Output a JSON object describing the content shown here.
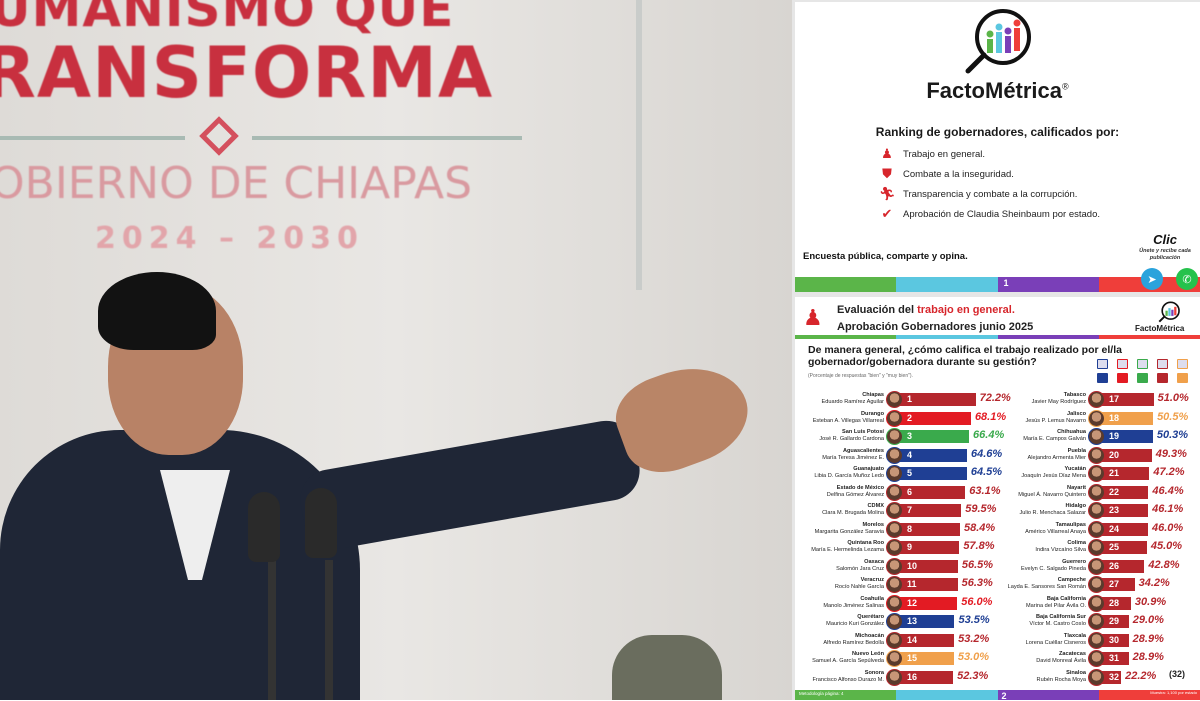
{
  "photo": {
    "banner_line1": "UMANISMO QUE",
    "banner_line2": "RANSFORMA",
    "banner_line3": "OBIERNO DE CHIAPAS",
    "banner_years": "2024 – 2030"
  },
  "slide1": {
    "brand": "FactoMétrica",
    "registered": "®",
    "ranking_title": "Ranking de gobernadores, calificados por:",
    "criteria": [
      {
        "icon": "worker-icon",
        "label": "Trabajo en general."
      },
      {
        "icon": "shield-icon",
        "label": "Combate a la inseguridad."
      },
      {
        "icon": "runner-icon",
        "label": "Transparencia y combate a la corrupción."
      },
      {
        "icon": "checkmark-icon",
        "label": "Aprobación de Claudia Sheinbaum por estado."
      }
    ],
    "footer_text": "Encuesta pública, comparte y opina.",
    "clic": "Clic",
    "join_text": "Únete y recibe cada publicación",
    "page_number": "1"
  },
  "slide2": {
    "title_prefix": "Evaluación del ",
    "title_highlight": "trabajo en general.",
    "subtitle": "Aprobación Gobernadores junio 2025",
    "brand": "FactoMétrica",
    "question": "De manera general, ¿cómo califica el trabajo realizado por el/la gobernador/gobernadora durante su gestión?",
    "note": "(Porcentaje de respuestas \"bien\" y \"muy bien\").",
    "total": "(32)",
    "methodology": "Metodología página: 4",
    "page_number": "2",
    "footer_right": "Muestra: 1,100 por estado"
  },
  "colors": {
    "PAN": "#1f3f94",
    "PRI": "#e31b23",
    "PVEM": "#3aaa4c",
    "MORENA": "#b5272d",
    "MC": "#f0a04b"
  },
  "chart_data": {
    "type": "bar",
    "title": "Aprobación Gobernadores junio 2025",
    "unit": "%",
    "xlim": [
      0,
      100
    ],
    "legend": [
      "PAN",
      "PRI",
      "PVEM",
      "MORENA",
      "MC"
    ],
    "items": [
      {
        "rank": "1",
        "state": "Chiapas",
        "governor": "Eduardo Ramírez Aguilar",
        "value": 72.2,
        "label": "72.2%",
        "party": "MORENA"
      },
      {
        "rank": "2",
        "state": "Durango",
        "governor": "Esteban A. Villegas Villarreal",
        "value": 68.1,
        "label": "68.1%",
        "party": "PRI"
      },
      {
        "rank": "3",
        "state": "San Luis Potosí",
        "governor": "José R. Gallardo Cardona",
        "value": 66.4,
        "label": "66.4%",
        "party": "PVEM"
      },
      {
        "rank": "4",
        "state": "Aguascalientes",
        "governor": "María Teresa Jiménez E.",
        "value": 64.6,
        "label": "64.6%",
        "party": "PAN"
      },
      {
        "rank": "5",
        "state": "Guanajuato",
        "governor": "Libia D. García Muñoz Ledo",
        "value": 64.5,
        "label": "64.5%",
        "party": "PAN"
      },
      {
        "rank": "6",
        "state": "Estado de México",
        "governor": "Delfina Gómez Álvarez",
        "value": 63.1,
        "label": "63.1%",
        "party": "MORENA"
      },
      {
        "rank": "7",
        "state": "CDMX",
        "governor": "Clara M. Brugada Molina",
        "value": 59.5,
        "label": "59.5%",
        "party": "MORENA"
      },
      {
        "rank": "8",
        "state": "Morelos",
        "governor": "Margarita González Saravia",
        "value": 58.4,
        "label": "58.4%",
        "party": "MORENA"
      },
      {
        "rank": "9",
        "state": "Quintana Roo",
        "governor": "María E. Hermelinda Lezama",
        "value": 57.8,
        "label": "57.8%",
        "party": "MORENA"
      },
      {
        "rank": "10",
        "state": "Oaxaca",
        "governor": "Salomón Jara Cruz",
        "value": 56.5,
        "label": "56.5%",
        "party": "MORENA"
      },
      {
        "rank": "11",
        "state": "Veracruz",
        "governor": "Rocío Nahle García",
        "value": 56.3,
        "label": "56.3%",
        "party": "MORENA"
      },
      {
        "rank": "12",
        "state": "Coahuila",
        "governor": "Manolo Jiménez Salinas",
        "value": 56.0,
        "label": "56.0%",
        "party": "PRI"
      },
      {
        "rank": "13",
        "state": "Querétaro",
        "governor": "Mauricio Kuri González",
        "value": 53.5,
        "label": "53.5%",
        "party": "PAN"
      },
      {
        "rank": "14",
        "state": "Michoacán",
        "governor": "Alfredo Ramírez Bedolla",
        "value": 53.2,
        "label": "53.2%",
        "party": "MORENA"
      },
      {
        "rank": "15",
        "state": "Nuevo León",
        "governor": "Samuel A. García Sepúlveda",
        "value": 53.0,
        "label": "53.0%",
        "party": "MC"
      },
      {
        "rank": "16",
        "state": "Sonora",
        "governor": "Francisco Alfonso Durazo M.",
        "value": 52.3,
        "label": "52.3%",
        "party": "MORENA"
      },
      {
        "rank": "17",
        "state": "Tabasco",
        "governor": "Javier May Rodríguez",
        "value": 51.0,
        "label": "51.0%",
        "party": "MORENA"
      },
      {
        "rank": "18",
        "state": "Jalisco",
        "governor": "Jesús P. Lemus Navarro",
        "value": 50.5,
        "label": "50.5%",
        "party": "MC"
      },
      {
        "rank": "19",
        "state": "Chihuahua",
        "governor": "María E. Campos Galván",
        "value": 50.3,
        "label": "50.3%",
        "party": "PAN"
      },
      {
        "rank": "20",
        "state": "Puebla",
        "governor": "Alejandro Armenta Mier",
        "value": 49.3,
        "label": "49.3%",
        "party": "MORENA"
      },
      {
        "rank": "21",
        "state": "Yucatán",
        "governor": "Joaquín Jesús Díaz Mena",
        "value": 47.2,
        "label": "47.2%",
        "party": "MORENA"
      },
      {
        "rank": "22",
        "state": "Nayarit",
        "governor": "Miguel Á. Navarro Quintero",
        "value": 46.4,
        "label": "46.4%",
        "party": "MORENA"
      },
      {
        "rank": "23",
        "state": "Hidalgo",
        "governor": "Julio R. Menchaca Salazar",
        "value": 46.1,
        "label": "46.1%",
        "party": "MORENA"
      },
      {
        "rank": "24",
        "state": "Tamaulipas",
        "governor": "Américo Villarreal Anaya",
        "value": 46.0,
        "label": "46.0%",
        "party": "MORENA"
      },
      {
        "rank": "25",
        "state": "Colima",
        "governor": "Indira Vizcaíno Silva",
        "value": 45.0,
        "label": "45.0%",
        "party": "MORENA"
      },
      {
        "rank": "26",
        "state": "Guerrero",
        "governor": "Evelyn C. Salgado Pineda",
        "value": 42.8,
        "label": "42.8%",
        "party": "MORENA"
      },
      {
        "rank": "27",
        "state": "Campeche",
        "governor": "Layda E. Sansores San Román",
        "value": 34.2,
        "label": "34.2%",
        "party": "MORENA"
      },
      {
        "rank": "28",
        "state": "Baja California",
        "governor": "Marina del Pilar Ávila O.",
        "value": 30.9,
        "label": "30.9%",
        "party": "MORENA"
      },
      {
        "rank": "29",
        "state": "Baja California Sur",
        "governor": "Víctor M. Castro Cosío",
        "value": 29.0,
        "label": "29.0%",
        "party": "MORENA"
      },
      {
        "rank": "30",
        "state": "Tlaxcala",
        "governor": "Lorena Cuéllar Cisneros",
        "value": 28.9,
        "label": "28.9%",
        "party": "MORENA"
      },
      {
        "rank": "31",
        "state": "Zacatecas",
        "governor": "David Monreal Ávila",
        "value": 28.9,
        "label": "28.9%",
        "party": "MORENA"
      },
      {
        "rank": "32",
        "state": "Sinaloa",
        "governor": "Rubén Rocha Moya",
        "value": 22.2,
        "label": "22.2%",
        "party": "MORENA"
      }
    ]
  }
}
